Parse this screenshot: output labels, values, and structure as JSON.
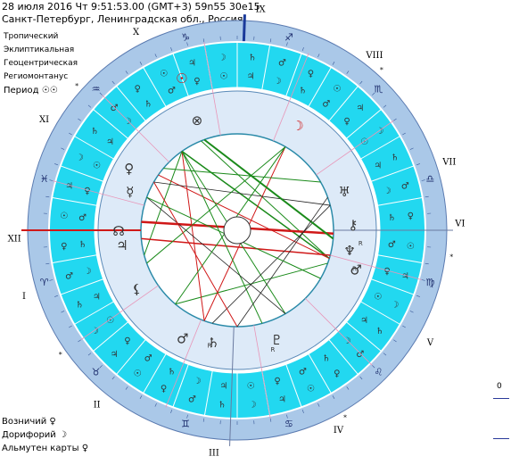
{
  "header": {
    "line1": "28 июля 2016  Чт   9:51:53.00 (GMT+3) 59n55  30e15",
    "line2": "Санкт-Петербург, Ленинградская обл., Россия"
  },
  "options": [
    "Тропический",
    "Эклиптикальная",
    "Геоцентрическая",
    "Региомонтанус"
  ],
  "period": "Период ☉☉",
  "footer": {
    "voznichiy": "Возничий  ♀",
    "doriforiy": "Дорифорий  ☽",
    "almuten": "Альмутен карты  ♀"
  },
  "scale_value": "0",
  "houses": [
    "I",
    "II",
    "III",
    "IV",
    "V",
    "VI",
    "VII",
    "VIII",
    "IX",
    "X",
    "XI",
    "XII"
  ],
  "sign_glyphs": [
    "♈",
    "♉",
    "♊",
    "♋",
    "♌",
    "♍",
    "♎",
    "♏",
    "♐",
    "♑",
    "♒",
    "♓"
  ],
  "planet_labels": {
    "sun": "☉",
    "moon": "☽",
    "mercury": "☿",
    "venus": "♀",
    "mars": "♂",
    "jupiter": "♃",
    "saturn": "♄",
    "uranus": "♅",
    "neptune": "♆",
    "pluto": "♇",
    "node": "☊",
    "lilith": "⚸",
    "part_fortune": "⊗",
    "chiron": "⚷"
  },
  "retro_marker": "R",
  "colors": {
    "outer_ring": "#aac8e8",
    "cyan_ring": "#22d8f0",
    "inner_band": "#ddeaf8",
    "line_blue": "#1a3a9a",
    "aspect_red": "#d01818",
    "aspect_green": "#1a8a1a",
    "aspect_dark": "#222222"
  }
}
